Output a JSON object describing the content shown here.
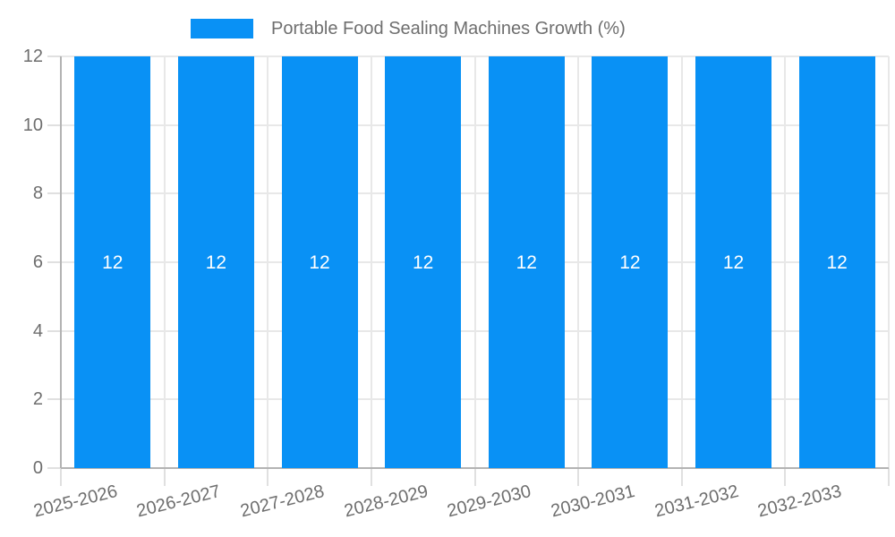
{
  "legend": {
    "label": "Portable Food Sealing Machines Growth (%)"
  },
  "colors": {
    "bar": "#0991f5",
    "grid": "#e8e8e8",
    "axis": "#b3b3b3",
    "tick": "#e0e0e0",
    "text": "#6e6e6e",
    "bar_label": "#ffffff",
    "background": "#ffffff"
  },
  "chart_data": {
    "type": "bar",
    "title": "Portable Food Sealing Machines Growth (%)",
    "categories": [
      "2025-2026",
      "2026-2027",
      "2027-2028",
      "2028-2029",
      "2029-2030",
      "2030-2031",
      "2031-2032",
      "2032-2033"
    ],
    "values": [
      12,
      12,
      12,
      12,
      12,
      12,
      12,
      12
    ],
    "bar_value_labels": [
      "12",
      "12",
      "12",
      "12",
      "12",
      "12",
      "12",
      "12"
    ],
    "xlabel": "",
    "ylabel": "",
    "ylim": [
      0,
      12
    ],
    "yticks": [
      0,
      2,
      4,
      6,
      8,
      10,
      12
    ],
    "grid": true,
    "legend_position": "top",
    "x_label_rotation_deg": -14
  }
}
